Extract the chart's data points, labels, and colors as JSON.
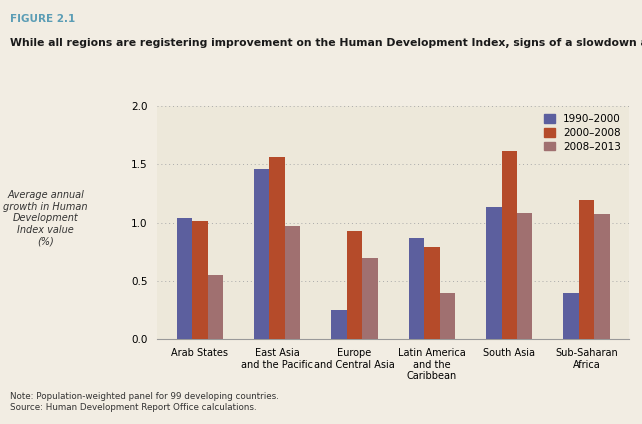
{
  "figure_label": "FIGURE 2.1",
  "title": "While all regions are registering improvement on the Human Development Index, signs of a slowdown are emerging",
  "ylabel": "Average annual\ngrowth in Human\nDevelopment\nIndex value\n(%)",
  "note": "Note: Population-weighted panel for 99 developing countries.\nSource: Human Development Report Office calculations.",
  "categories": [
    "Arab States",
    "East Asia\nand the Pacific",
    "Europe\nand Central Asia",
    "Latin America\nand the\nCaribbean",
    "South Asia",
    "Sub-Saharan\nAfrica"
  ],
  "series": {
    "1990–2000": [
      1.04,
      1.46,
      0.25,
      0.87,
      1.13,
      0.4
    ],
    "2000–2008": [
      1.01,
      1.56,
      0.93,
      0.79,
      1.61,
      1.19
    ],
    "2008–2013": [
      0.55,
      0.97,
      0.7,
      0.4,
      1.08,
      1.07
    ]
  },
  "colors": {
    "1990–2000": "#5c5f9e",
    "2000–2008": "#b54b2a",
    "2008–2013": "#a07070"
  },
  "legend_labels": [
    "1990–2000",
    "2000–2008",
    "2008–2013"
  ],
  "ylim": [
    0,
    2.0
  ],
  "yticks": [
    0.0,
    0.5,
    1.0,
    1.5,
    2.0
  ],
  "plot_bg": "#ede8da",
  "outer_bg": "#f2ede3",
  "bar_width": 0.2,
  "teal_color": "#5b9db5",
  "label_color": "#5b9db5"
}
